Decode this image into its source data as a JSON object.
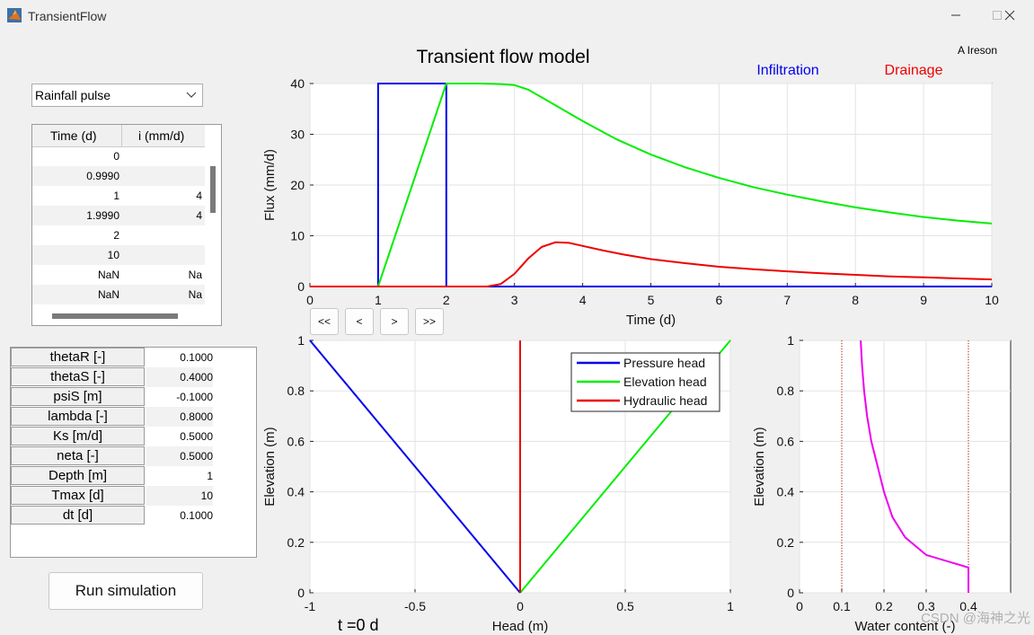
{
  "window": {
    "title": "TransientFlow",
    "minimize_icon": "minimize-icon",
    "maximize_icon": "maximize-icon",
    "close_icon": "close-icon"
  },
  "rainfall": {
    "selected": "Rainfall pulse",
    "headers": [
      "Time (d)",
      "i (mm/d)"
    ],
    "rows": [
      [
        "0",
        ""
      ],
      [
        "0.9990",
        ""
      ],
      [
        "1",
        "4"
      ],
      [
        "1.9990",
        "4"
      ],
      [
        "2",
        ""
      ],
      [
        "10",
        ""
      ],
      [
        "NaN",
        "Na"
      ],
      [
        "NaN",
        "Na"
      ]
    ]
  },
  "params": [
    {
      "name": "thetaR [-]",
      "value": "0.1000"
    },
    {
      "name": "thetaS [-]",
      "value": "0.4000"
    },
    {
      "name": "psiS [m]",
      "value": "-0.1000"
    },
    {
      "name": "lambda [-]",
      "value": "0.8000"
    },
    {
      "name": "Ks [m/d]",
      "value": "0.5000"
    },
    {
      "name": "neta [-]",
      "value": "0.5000"
    },
    {
      "name": "Depth [m]",
      "value": "1"
    },
    {
      "name": "Tmax [d]",
      "value": "10"
    },
    {
      "name": "dt [d]",
      "value": "0.1000"
    }
  ],
  "run_label": "Run simulation",
  "nav": [
    "<<",
    "<",
    ">",
    ">>"
  ],
  "time_label": "t =0 d",
  "watermark": "CSDN @海神之光",
  "colors": {
    "blue": "#0000ee",
    "green": "#00ee00",
    "red": "#ee0000",
    "magenta": "#ee00ee"
  },
  "chart_data": [
    {
      "type": "line",
      "title": "Transient flow model",
      "author": "A Ireson",
      "xlabel": "Time (d)",
      "ylabel": "Flux (mm/d)",
      "xlim": [
        0,
        10
      ],
      "ylim": [
        0,
        40
      ],
      "xticks": [
        0,
        1,
        2,
        3,
        4,
        5,
        6,
        7,
        8,
        9,
        10
      ],
      "yticks": [
        0,
        10,
        20,
        30,
        40
      ],
      "grid": true,
      "legend_text": [
        {
          "label": "Infiltration",
          "color": "#0000ee"
        },
        {
          "label": "Drainage",
          "color": "#ee0000"
        }
      ],
      "series": [
        {
          "name": "Infiltration",
          "color": "#0000ee",
          "x": [
            0,
            1,
            1,
            2,
            2,
            10
          ],
          "y": [
            0,
            0,
            40,
            40,
            0,
            0
          ]
        },
        {
          "name": "Infiltration",
          "color": "#00ee00",
          "x": [
            0,
            1,
            1.5,
            2,
            2.5,
            2.8,
            3,
            3.2,
            3.5,
            4,
            4.5,
            5,
            5.5,
            6,
            6.5,
            7,
            7.5,
            8,
            8.5,
            9,
            9.5,
            10
          ],
          "y": [
            0,
            0,
            20,
            40,
            40,
            39.9,
            39.7,
            38.8,
            36.5,
            32.6,
            29,
            26,
            23.5,
            21.4,
            19.6,
            18.1,
            16.8,
            15.6,
            14.6,
            13.7,
            13,
            12.4
          ]
        },
        {
          "name": "Drainage",
          "color": "#ee0000",
          "x": [
            0,
            2.6,
            2.8,
            3,
            3.2,
            3.4,
            3.6,
            3.8,
            4,
            4.3,
            4.6,
            5,
            5.5,
            6,
            6.5,
            7,
            7.5,
            8,
            8.5,
            9,
            9.5,
            10
          ],
          "y": [
            0,
            0,
            0.5,
            2.5,
            5.5,
            7.8,
            8.7,
            8.6,
            8.0,
            7.1,
            6.3,
            5.4,
            4.6,
            3.9,
            3.4,
            3.0,
            2.6,
            2.3,
            2.0,
            1.8,
            1.6,
            1.4
          ]
        }
      ]
    },
    {
      "type": "line",
      "xlabel": "Head (m)",
      "ylabel": "Elevation (m)",
      "xlim": [
        -1,
        1
      ],
      "ylim": [
        0,
        1
      ],
      "xticks": [
        -1,
        -0.5,
        0,
        0.5,
        1
      ],
      "yticks": [
        0,
        0.2,
        0.4,
        0.6,
        0.8,
        1
      ],
      "grid": true,
      "legend_position": "top-right",
      "series": [
        {
          "name": "Pressure head",
          "color": "#0000ee",
          "x": [
            -1,
            0
          ],
          "y": [
            1,
            0
          ]
        },
        {
          "name": "Elevation head",
          "color": "#00ee00",
          "x": [
            0,
            1
          ],
          "y": [
            0,
            1
          ]
        },
        {
          "name": "Hydraulic head",
          "color": "#ee0000",
          "x": [
            0,
            0
          ],
          "y": [
            0,
            1
          ]
        }
      ]
    },
    {
      "type": "line",
      "xlabel": "Water content (-)",
      "ylabel": "Elevation (m)",
      "xlim": [
        0,
        0.5
      ],
      "ylim": [
        0,
        1
      ],
      "xticks": [
        0,
        0.1,
        0.2,
        0.3,
        0.4
      ],
      "yticks": [
        0,
        0.2,
        0.4,
        0.6,
        0.8,
        1
      ],
      "grid": true,
      "reference_lines_x": [
        0.1,
        0.4
      ],
      "series": [
        {
          "name": "Water content",
          "color": "#ee00ee",
          "x": [
            0.4,
            0.4,
            0.38,
            0.3,
            0.25,
            0.22,
            0.2,
            0.185,
            0.17,
            0.16,
            0.153,
            0.148,
            0.145
          ],
          "y": [
            0,
            0.1,
            0.11,
            0.15,
            0.22,
            0.3,
            0.4,
            0.5,
            0.6,
            0.7,
            0.8,
            0.9,
            1.0
          ]
        }
      ]
    }
  ]
}
